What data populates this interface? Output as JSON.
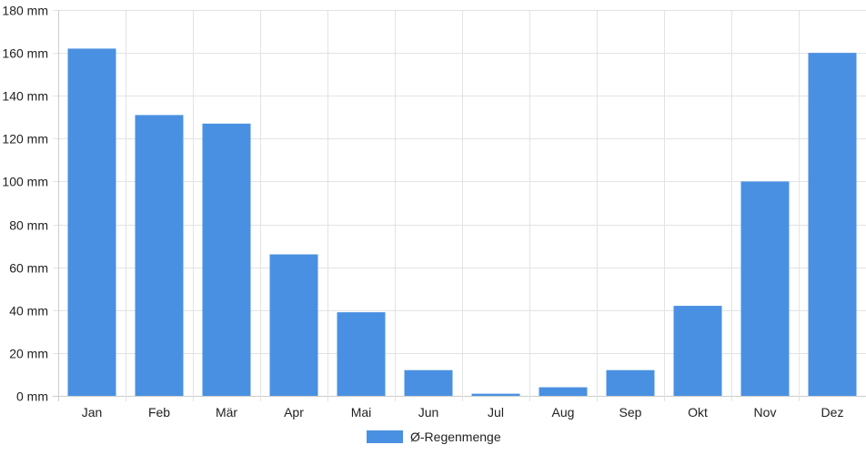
{
  "chart_data": {
    "type": "bar",
    "categories": [
      "Jan",
      "Feb",
      "Mär",
      "Apr",
      "Mai",
      "Jun",
      "Jul",
      "Aug",
      "Sep",
      "Okt",
      "Nov",
      "Dez"
    ],
    "series": [
      {
        "name": "Ø-Regenmenge",
        "values": [
          162,
          131,
          127,
          66,
          39,
          12,
          1,
          4,
          12,
          42,
          100,
          160
        ]
      }
    ],
    "ylim": [
      0,
      180
    ],
    "yticks": [
      0,
      20,
      40,
      60,
      80,
      100,
      120,
      140,
      160,
      180
    ],
    "unit": "mm",
    "grid": true,
    "legend": "bottom",
    "bar_color": "#4a90e2",
    "grid_color": "#e3e3e3"
  }
}
